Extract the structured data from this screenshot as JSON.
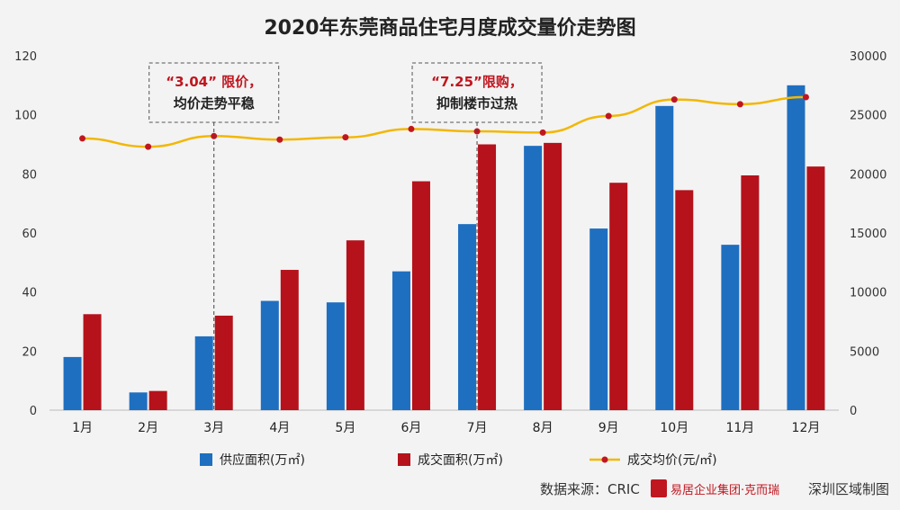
{
  "chart_data": {
    "type": "bar",
    "title": "2020年东莞商品住宅月度成交量价走势图",
    "categories": [
      "1月",
      "2月",
      "3月",
      "4月",
      "5月",
      "6月",
      "7月",
      "8月",
      "9月",
      "10月",
      "11月",
      "12月"
    ],
    "series": [
      {
        "name": "供应面积(万㎡)",
        "type": "bar",
        "axis": "left",
        "color": "#1f6fc0",
        "values": [
          18,
          6,
          25,
          37,
          36.5,
          47,
          63,
          89.5,
          61.5,
          103,
          56,
          110
        ]
      },
      {
        "name": "成交面积(万㎡)",
        "type": "bar",
        "axis": "left",
        "color": "#b5121b",
        "values": [
          32.5,
          6.5,
          32,
          47.5,
          57.5,
          77.5,
          90,
          90.5,
          77,
          74.5,
          79.5,
          82.5
        ]
      },
      {
        "name": "成交均价(元/㎡)",
        "type": "line",
        "axis": "right",
        "color": "#f2b705",
        "marker_color": "#c0161f",
        "values": [
          23000,
          22300,
          23200,
          22900,
          23100,
          23800,
          23600,
          23500,
          24900,
          26300,
          25900,
          26500
        ]
      }
    ],
    "left_axis": {
      "min": 0,
      "max": 120,
      "ticks": [
        0,
        20,
        40,
        60,
        80,
        100,
        120
      ]
    },
    "right_axis": {
      "min": 0,
      "max": 30000,
      "ticks": [
        0,
        5000,
        10000,
        15000,
        20000,
        25000,
        30000
      ]
    },
    "annotations": [
      {
        "category": "3月",
        "quote": "“3.04”",
        "label": " 限价，",
        "line2": "均价走势平稳"
      },
      {
        "category": "7月",
        "quote": "“7.25”",
        "label": "限购，",
        "line2": "抑制楼市过热"
      }
    ],
    "source": "数据来源：CRIC",
    "watermark_logo_text": "易居企业集团·克而瑞",
    "credit": "深圳区域制图",
    "legend_position": "bottom",
    "grid": false
  }
}
